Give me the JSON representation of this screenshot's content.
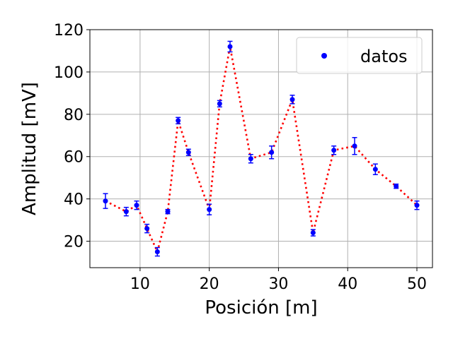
{
  "chart_data": {
    "type": "scatter",
    "xlabel": "Posición [m]",
    "ylabel": "Amplitud [mV]",
    "xlim": [
      2.75,
      52.25
    ],
    "ylim": [
      7.5,
      120
    ],
    "xticks": [
      10,
      20,
      30,
      40,
      50
    ],
    "yticks": [
      20,
      40,
      60,
      80,
      100,
      120
    ],
    "grid": true,
    "legend": {
      "position": "top-right",
      "entries": [
        "datos"
      ]
    },
    "colors": {
      "points": "#0000ff",
      "line": "#ff0000",
      "grid": "#b0b0b0"
    },
    "series": [
      {
        "name": "datos",
        "marker": "dot",
        "error_bars": true,
        "fit_line": "dotted",
        "points": [
          {
            "x": 5,
            "y": 39,
            "err": 3.5
          },
          {
            "x": 8,
            "y": 34,
            "err": 2
          },
          {
            "x": 9.5,
            "y": 37,
            "err": 2
          },
          {
            "x": 11,
            "y": 26,
            "err": 2
          },
          {
            "x": 12.5,
            "y": 15,
            "err": 2
          },
          {
            "x": 14,
            "y": 34,
            "err": 1
          },
          {
            "x": 15.5,
            "y": 77,
            "err": 1.5
          },
          {
            "x": 17,
            "y": 62,
            "err": 1.5
          },
          {
            "x": 20,
            "y": 35,
            "err": 2.5
          },
          {
            "x": 21.5,
            "y": 85,
            "err": 1.5
          },
          {
            "x": 23,
            "y": 112,
            "err": 2.5
          },
          {
            "x": 26,
            "y": 59,
            "err": 2
          },
          {
            "x": 29,
            "y": 62,
            "err": 3
          },
          {
            "x": 32,
            "y": 87,
            "err": 2
          },
          {
            "x": 35,
            "y": 24,
            "err": 1.5
          },
          {
            "x": 38,
            "y": 63,
            "err": 2
          },
          {
            "x": 41,
            "y": 65,
            "err": 4
          },
          {
            "x": 44,
            "y": 54,
            "err": 2.5
          },
          {
            "x": 47,
            "y": 46,
            "err": 1
          },
          {
            "x": 50,
            "y": 37,
            "err": 2
          }
        ]
      }
    ]
  }
}
